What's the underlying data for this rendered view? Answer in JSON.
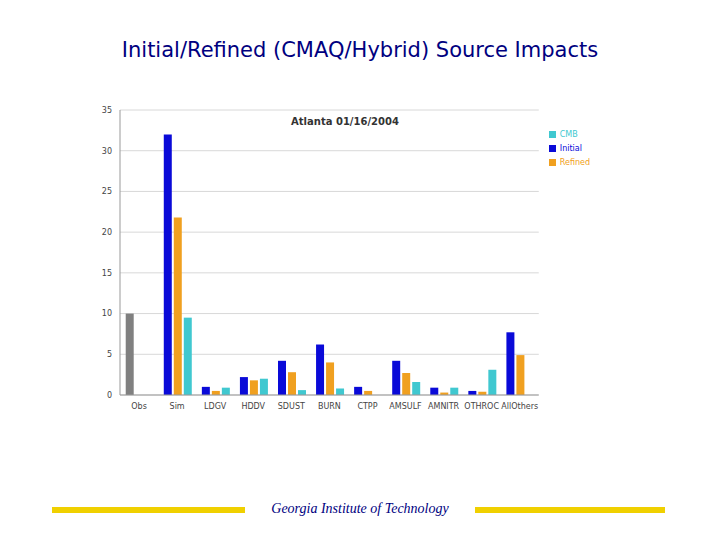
{
  "header": {
    "title": "Initial/Refined (CMAQ/Hybrid) Source Impacts"
  },
  "footer": {
    "text": "Georgia Institute of Technology"
  },
  "chart_data": {
    "type": "bar",
    "title": "Atlanta 01/16/2004",
    "categories": [
      "Obs",
      "Sim",
      "LDGV",
      "HDDV",
      "SDUST",
      "BURN",
      "CTPP",
      "AMSULF",
      "AMNITR",
      "OTHROC",
      "AllOthers"
    ],
    "series": [
      {
        "name": "Initial",
        "color": "#0a0ad8",
        "colors": [
          "#808080",
          "#0a0ad8",
          "#0a0ad8",
          "#0a0ad8",
          "#0a0ad8",
          "#0a0ad8",
          "#0a0ad8",
          "#0a0ad8",
          "#0a0ad8",
          "#0a0ad8",
          "#0a0ad8"
        ],
        "values": [
          10,
          32,
          1,
          2.2,
          4.2,
          6.2,
          1,
          4.2,
          0.9,
          0.5,
          7.7
        ]
      },
      {
        "name": "Refined",
        "color": "#f0a020",
        "values": [
          null,
          21.8,
          0.5,
          1.8,
          2.8,
          4,
          0.5,
          2.7,
          0.3,
          0.4,
          4.9
        ]
      },
      {
        "name": "CMB",
        "color": "#40c8d0",
        "values": [
          null,
          9.5,
          0.9,
          2,
          0.6,
          0.8,
          null,
          1.6,
          0.9,
          3.1,
          null
        ]
      }
    ],
    "ylim": [
      0,
      35
    ],
    "yticks": [
      0,
      5,
      10,
      15,
      20,
      25,
      30,
      35
    ],
    "grid": true,
    "legend": "top-right"
  }
}
